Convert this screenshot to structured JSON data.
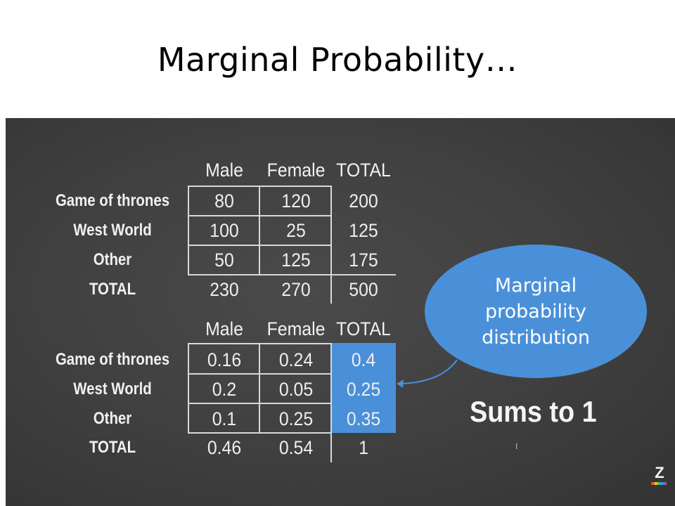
{
  "title": "Marginal Probability…",
  "column_headers": [
    "Male",
    "Female",
    "TOTAL"
  ],
  "row_labels": [
    "Game of thrones",
    "West World",
    "Other",
    "TOTAL"
  ],
  "counts_table": [
    [
      "80",
      "120",
      "200"
    ],
    [
      "100",
      "25",
      "125"
    ],
    [
      "50",
      "125",
      "175"
    ],
    [
      "230",
      "270",
      "500"
    ]
  ],
  "probability_table": [
    [
      "0.16",
      "0.24",
      "0.4"
    ],
    [
      "0.2",
      "0.05",
      "0.25"
    ],
    [
      "0.1",
      "0.25",
      "0.35"
    ],
    [
      "0.46",
      "0.54",
      "1"
    ]
  ],
  "callout": {
    "line1": "Marginal",
    "line2": "probability",
    "line3": "distribution"
  },
  "sums_text": "Sums to 1",
  "logo_text": "Z",
  "colors": {
    "highlight": "#4a90d9",
    "board": "#404040"
  }
}
